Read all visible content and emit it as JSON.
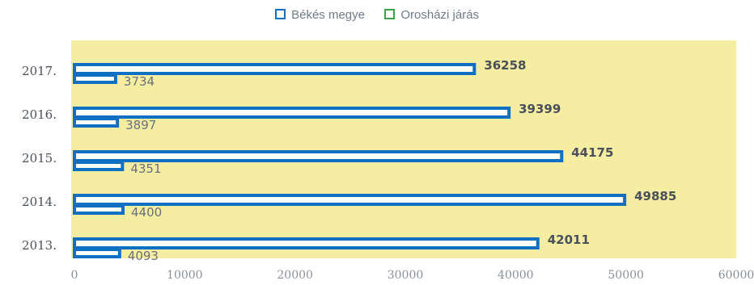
{
  "chart_data": {
    "type": "bar",
    "orientation": "horizontal",
    "categories": [
      "2013.",
      "2014.",
      "2015.",
      "2016.",
      "2017."
    ],
    "series": [
      {
        "name": "Békés megye",
        "values": [
          42011,
          49885,
          44175,
          39399,
          36258
        ]
      },
      {
        "name": "Orosházi járás",
        "values": [
          4093,
          4400,
          4351,
          3897,
          3734
        ]
      }
    ],
    "xlim": [
      0,
      60000
    ],
    "x_ticks": [
      "0",
      "10000",
      "20000",
      "30000",
      "40000",
      "50000",
      "60000"
    ],
    "grid": false,
    "legend_position": "top-center",
    "colors": {
      "series_outline": "#0f6fc2",
      "legend_green": "#3aa34a",
      "plot_background": "#f5eda1"
    }
  }
}
